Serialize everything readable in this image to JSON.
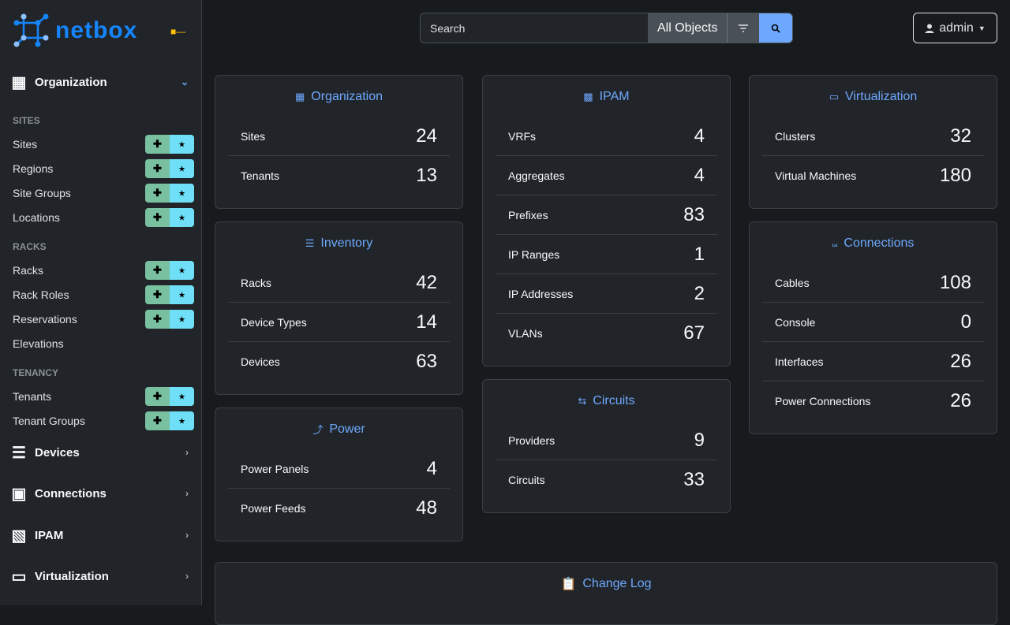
{
  "brand": {
    "name": "netbox",
    "color": "#1685fc"
  },
  "sidebar": {
    "sections": [
      {
        "label": "Organization",
        "icon": "building-icon",
        "expanded": true
      },
      {
        "label": "Devices",
        "icon": "server-icon"
      },
      {
        "label": "Connections",
        "icon": "ethernet-icon"
      },
      {
        "label": "IPAM",
        "icon": "ip-icon"
      },
      {
        "label": "Virtualization",
        "icon": "monitor-icon"
      }
    ],
    "groups": [
      {
        "heading": "SITES",
        "items": [
          {
            "label": "Sites",
            "buttons": true
          },
          {
            "label": "Regions",
            "buttons": true
          },
          {
            "label": "Site Groups",
            "buttons": true
          },
          {
            "label": "Locations",
            "buttons": true
          }
        ]
      },
      {
        "heading": "RACKS",
        "items": [
          {
            "label": "Racks",
            "buttons": true
          },
          {
            "label": "Rack Roles",
            "buttons": true
          },
          {
            "label": "Reservations",
            "buttons": true
          },
          {
            "label": "Elevations",
            "buttons": false
          }
        ]
      },
      {
        "heading": "TENANCY",
        "items": [
          {
            "label": "Tenants",
            "buttons": true
          },
          {
            "label": "Tenant Groups",
            "buttons": true
          }
        ]
      }
    ]
  },
  "search": {
    "placeholder": "Search",
    "scope": "All Objects"
  },
  "user": {
    "name": "admin"
  },
  "cards": {
    "organization": {
      "title": "Organization",
      "rows": [
        [
          "Sites",
          "24"
        ],
        [
          "Tenants",
          "13"
        ]
      ]
    },
    "inventory": {
      "title": "Inventory",
      "rows": [
        [
          "Racks",
          "42"
        ],
        [
          "Device Types",
          "14"
        ],
        [
          "Devices",
          "63"
        ]
      ]
    },
    "power": {
      "title": "Power",
      "rows": [
        [
          "Power Panels",
          "4"
        ],
        [
          "Power Feeds",
          "48"
        ]
      ]
    },
    "ipam": {
      "title": "IPAM",
      "rows": [
        [
          "VRFs",
          "4"
        ],
        [
          "Aggregates",
          "4"
        ],
        [
          "Prefixes",
          "83"
        ],
        [
          "IP Ranges",
          "1"
        ],
        [
          "IP Addresses",
          "2"
        ],
        [
          "VLANs",
          "67"
        ]
      ]
    },
    "circuits": {
      "title": "Circuits",
      "rows": [
        [
          "Providers",
          "9"
        ],
        [
          "Circuits",
          "33"
        ]
      ]
    },
    "virtualization": {
      "title": "Virtualization",
      "rows": [
        [
          "Clusters",
          "32"
        ],
        [
          "Virtual Machines",
          "180"
        ]
      ]
    },
    "connections": {
      "title": "Connections",
      "rows": [
        [
          "Cables",
          "108"
        ],
        [
          "Console",
          "0"
        ],
        [
          "Interfaces",
          "26"
        ],
        [
          "Power Connections",
          "26"
        ]
      ]
    }
  },
  "changelog": {
    "title": "Change Log"
  }
}
